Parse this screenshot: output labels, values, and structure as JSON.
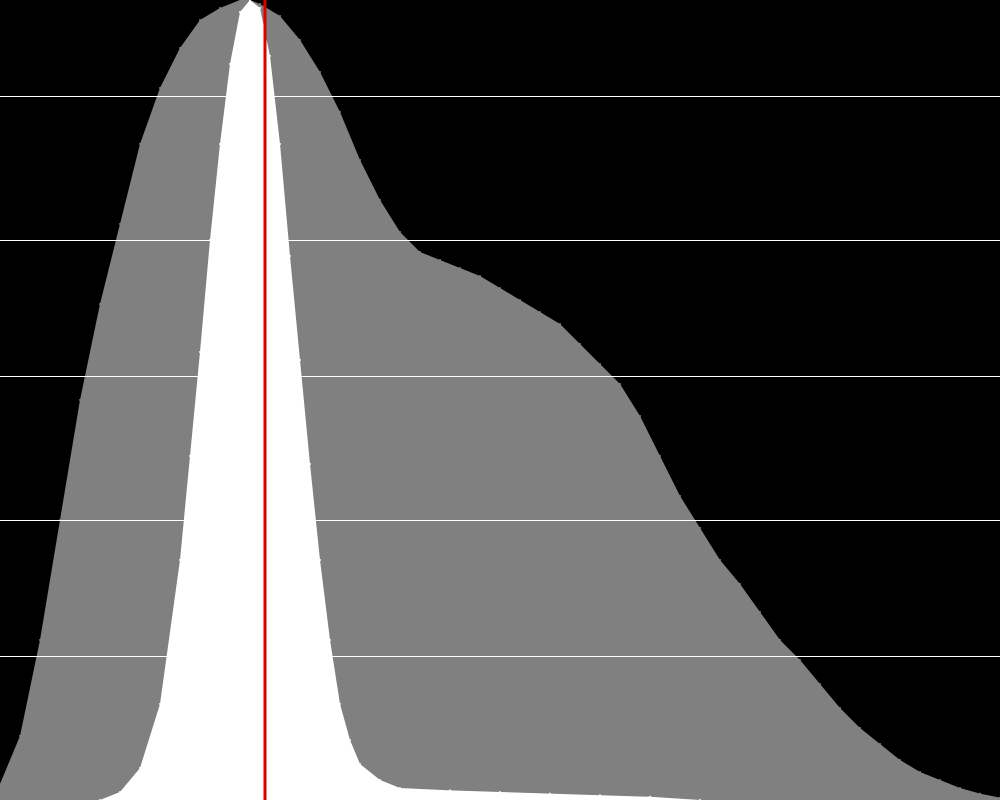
{
  "chart_data": {
    "type": "area",
    "title": "",
    "xlabel": "",
    "ylabel": "",
    "xlim": [
      0,
      1000
    ],
    "ylim": [
      0,
      1
    ],
    "grid": true,
    "gridlines_y": [
      0.18,
      0.35,
      0.53,
      0.7,
      0.88
    ],
    "colors": {
      "background": "#000000",
      "gridline": "#ffffff",
      "wide_series": "#808080",
      "narrow_series": "#ffffff",
      "marker": "#dd0000"
    },
    "marker_x": 265,
    "series": [
      {
        "key": "wide",
        "x": [
          0,
          20,
          40,
          60,
          80,
          100,
          120,
          140,
          160,
          180,
          200,
          220,
          240,
          250,
          260,
          280,
          300,
          320,
          340,
          360,
          380,
          400,
          420,
          440,
          460,
          480,
          500,
          520,
          540,
          560,
          580,
          600,
          620,
          640,
          660,
          680,
          700,
          720,
          740,
          760,
          780,
          800,
          820,
          840,
          860,
          880,
          900,
          920,
          940,
          960,
          980,
          1000
        ],
        "values": [
          0.02,
          0.08,
          0.2,
          0.35,
          0.5,
          0.62,
          0.72,
          0.82,
          0.89,
          0.94,
          0.975,
          0.99,
          1.0,
          1.0,
          0.995,
          0.98,
          0.95,
          0.91,
          0.86,
          0.8,
          0.75,
          0.71,
          0.685,
          0.675,
          0.665,
          0.655,
          0.64,
          0.625,
          0.61,
          0.595,
          0.57,
          0.545,
          0.52,
          0.48,
          0.43,
          0.38,
          0.34,
          0.3,
          0.27,
          0.235,
          0.2,
          0.175,
          0.145,
          0.115,
          0.09,
          0.07,
          0.05,
          0.035,
          0.025,
          0.015,
          0.008,
          0.003
        ]
      },
      {
        "key": "narrow",
        "x": [
          100,
          120,
          140,
          160,
          180,
          190,
          200,
          210,
          220,
          230,
          240,
          250,
          260,
          270,
          280,
          290,
          300,
          310,
          320,
          330,
          340,
          350,
          360,
          380,
          400,
          450,
          500,
          550,
          600,
          650,
          700
        ],
        "values": [
          0.0,
          0.01,
          0.04,
          0.12,
          0.3,
          0.43,
          0.56,
          0.7,
          0.82,
          0.92,
          0.985,
          1.0,
          0.99,
          0.93,
          0.82,
          0.68,
          0.55,
          0.42,
          0.3,
          0.2,
          0.12,
          0.075,
          0.045,
          0.025,
          0.015,
          0.012,
          0.01,
          0.008,
          0.006,
          0.004,
          0.0
        ]
      }
    ]
  }
}
